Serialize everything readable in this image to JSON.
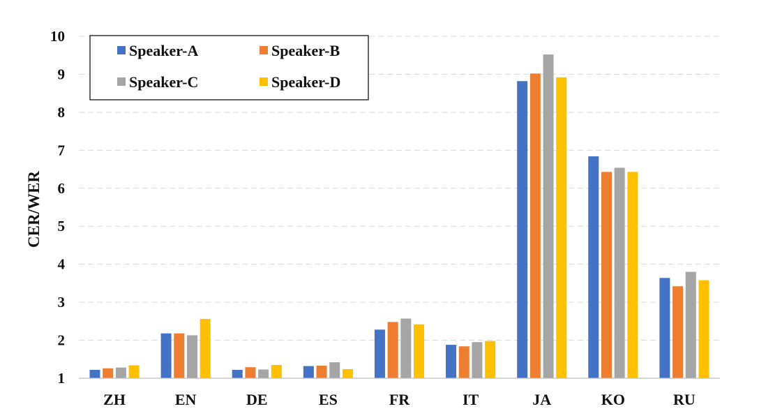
{
  "chart_data": {
    "type": "bar",
    "title": "",
    "xlabel": "",
    "ylabel": "CER/WER",
    "ylim": [
      1,
      10
    ],
    "yticks": [
      "1",
      "2",
      "3",
      "4",
      "5",
      "6",
      "7",
      "8",
      "9",
      "10"
    ],
    "grid": true,
    "legend_position": "top-left",
    "categories": [
      "ZH",
      "EN",
      "DE",
      "ES",
      "FR",
      "IT",
      "JA",
      "KO",
      "RU"
    ],
    "series": [
      {
        "name": "Speaker-A",
        "color": "#4472C4",
        "values": [
          1.22,
          2.18,
          1.22,
          1.32,
          2.28,
          1.88,
          8.82,
          6.84,
          3.64
        ]
      },
      {
        "name": "Speaker-B",
        "color": "#ED7D31",
        "values": [
          1.26,
          2.18,
          1.29,
          1.33,
          2.48,
          1.84,
          9.02,
          6.43,
          3.42
        ]
      },
      {
        "name": "Speaker-C",
        "color": "#A5A5A5",
        "values": [
          1.28,
          2.13,
          1.23,
          1.42,
          2.57,
          1.95,
          9.52,
          6.54,
          3.8
        ]
      },
      {
        "name": "Speaker-D",
        "color": "#FFC000",
        "values": [
          1.34,
          2.56,
          1.35,
          1.24,
          2.42,
          1.98,
          8.92,
          6.43,
          3.58
        ]
      }
    ]
  }
}
